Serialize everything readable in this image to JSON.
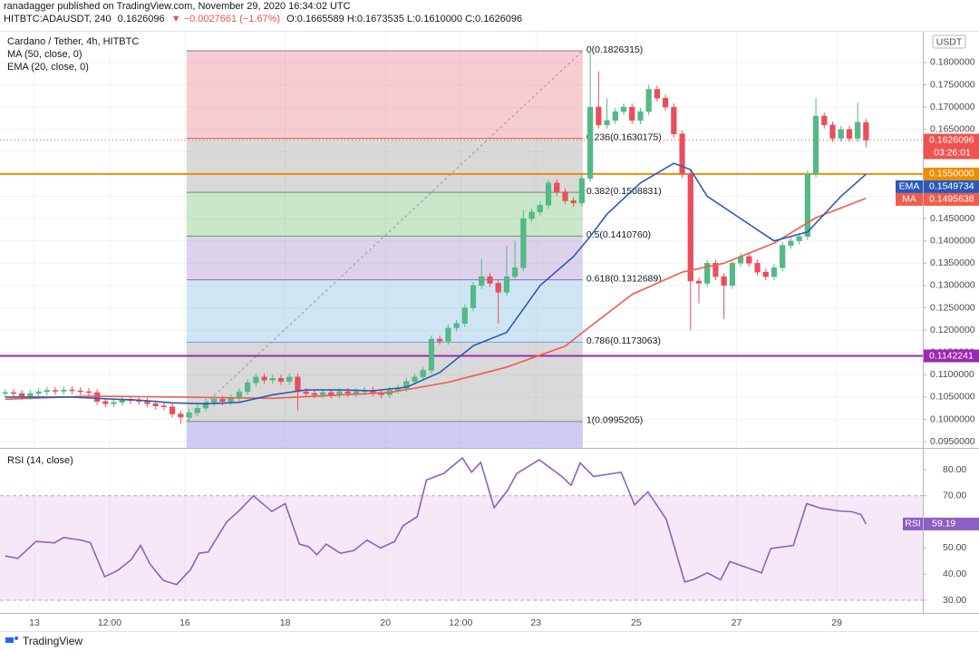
{
  "header": {
    "published": "ranadagger published on TradingView.com, November 29, 2020 16:34:02 UTC",
    "symbol": "HITBTC:ADAUSDT, 240",
    "last": "0.1626096",
    "change": "▼ −0.0027661 (−1.67%)",
    "ohlc": "O:0.1665589 H:0.1673535 L:0.1610000 C:0.1626096"
  },
  "footer": {
    "brand": "TradingView"
  },
  "chart_data": [
    {
      "type": "candlestick",
      "currency": "USDT",
      "countdown": "03:26:01",
      "xlim": [
        -4.12,
        106.29
      ],
      "ylim": [
        0.094,
        0.1869
      ],
      "grid": true,
      "yticks": [
        {
          "value": 0.18,
          "label": "0.1800000"
        },
        {
          "value": 0.175,
          "label": "0.1750000"
        },
        {
          "value": 0.17,
          "label": "0.1700000"
        },
        {
          "value": 0.165,
          "label": "0.1650000"
        },
        {
          "value": 0.16,
          "label": "0.1600000"
        },
        {
          "value": 0.155,
          "label": "0.1550000"
        },
        {
          "value": 0.15,
          "label": "0.1500000"
        },
        {
          "value": 0.145,
          "label": "0.1450000"
        },
        {
          "value": 0.14,
          "label": "0.1400000"
        },
        {
          "value": 0.135,
          "label": "0.1350000"
        },
        {
          "value": 0.13,
          "label": "0.1300000"
        },
        {
          "value": 0.125,
          "label": "0.1250000"
        },
        {
          "value": 0.12,
          "label": "0.1200000"
        },
        {
          "value": 0.115,
          "label": "0.1150000"
        },
        {
          "value": 0.11,
          "label": "0.1100000"
        },
        {
          "value": 0.105,
          "label": "0.1050000"
        },
        {
          "value": 0.1,
          "label": "0.1000000"
        },
        {
          "value": 0.095,
          "label": "0.0950000"
        }
      ],
      "series": [
        {
          "name": "Cardano / Tether, 4h, HITBTC",
          "up_color": "#53b987",
          "down_color": "#eb4d5c",
          "x": [
            -3.5,
            -2.5,
            -1.5,
            -0.5,
            0.5,
            1.5,
            2.5,
            3.5,
            4.5,
            5.5,
            6.5,
            7.5,
            8.5,
            9.5,
            10.5,
            11.5,
            12.5,
            13.5,
            14.5,
            15.5,
            16.5,
            17.5,
            18.5,
            19.5,
            20.5,
            21.5,
            22.5,
            23.5,
            24.5,
            25.5,
            26.5,
            27.5,
            28.5,
            29.5,
            30.5,
            31.5,
            32.5,
            33.5,
            34.5,
            35.5,
            36.5,
            37.5,
            38.5,
            39.5,
            40.5,
            41.5,
            42.5,
            43.5,
            44.5,
            45.5,
            46.5,
            47.5,
            48.5,
            49.5,
            50.5,
            51.5,
            52.5,
            53.5,
            54.5,
            55.5,
            56.5,
            57.5,
            58.5,
            59.5,
            60.5,
            61.5,
            62.5,
            63.5,
            64.5,
            65.5,
            66.5,
            67.5,
            68.5,
            69.5,
            70.5,
            71.5,
            72.5,
            73.5,
            74.5,
            75.5,
            76.5,
            77.5,
            78.5,
            79.5,
            80.5,
            81.5,
            82.5,
            83.5,
            84.5,
            85.5,
            86.5,
            87.5,
            88.5,
            89.5,
            90.5,
            91.5,
            92.5,
            93.5,
            94.5,
            95.5,
            96.5,
            97.5,
            98.5,
            99.5
          ],
          "open": [
            0.1058,
            0.106,
            0.1058,
            0.1052,
            0.1058,
            0.1062,
            0.1065,
            0.1063,
            0.1066,
            0.1064,
            0.1062,
            0.106,
            0.104,
            0.1035,
            0.1038,
            0.1045,
            0.1042,
            0.104,
            0.1035,
            0.103,
            0.1028,
            0.1012,
            0.1005,
            0.1015,
            0.1025,
            0.1038,
            0.1045,
            0.104,
            0.1048,
            0.1062,
            0.1082,
            0.1095,
            0.1088,
            0.1092,
            0.1085,
            0.1095,
            0.1062,
            0.1058,
            0.1055,
            0.106,
            0.1055,
            0.1062,
            0.1058,
            0.1062,
            0.1065,
            0.106,
            0.1055,
            0.1065,
            0.107,
            0.1085,
            0.1095,
            0.111,
            0.118,
            0.1175,
            0.1205,
            0.1215,
            0.125,
            0.13,
            0.132,
            0.1305,
            0.1285,
            0.132,
            0.134,
            0.145,
            0.1465,
            0.148,
            0.153,
            0.151,
            0.149,
            0.1485,
            0.154,
            0.17,
            0.166,
            0.167,
            0.169,
            0.17,
            0.167,
            0.169,
            0.174,
            0.172,
            0.17,
            0.164,
            0.155,
            0.131,
            0.1305,
            0.135,
            0.132,
            0.13,
            0.135,
            0.1365,
            0.135,
            0.133,
            0.132,
            0.134,
            0.139,
            0.14,
            0.141,
            0.155,
            0.168,
            0.166,
            0.163,
            0.165,
            0.163,
            0.1665589
          ],
          "high": [
            0.1068,
            0.1068,
            0.1066,
            0.1066,
            0.107,
            0.1073,
            0.1073,
            0.1074,
            0.1074,
            0.1072,
            0.107,
            0.1068,
            0.1048,
            0.1046,
            0.1053,
            0.1053,
            0.105,
            0.1048,
            0.1043,
            0.1038,
            0.1036,
            0.102,
            0.1023,
            0.1033,
            0.1046,
            0.1053,
            0.1053,
            0.1056,
            0.107,
            0.109,
            0.1103,
            0.1103,
            0.11,
            0.11,
            0.1103,
            0.1103,
            0.107,
            0.1066,
            0.1068,
            0.1068,
            0.107,
            0.107,
            0.107,
            0.1073,
            0.1073,
            0.1068,
            0.1073,
            0.1078,
            0.1093,
            0.1103,
            0.1118,
            0.1188,
            0.1188,
            0.1213,
            0.1223,
            0.1258,
            0.1308,
            0.136,
            0.1328,
            0.1313,
            0.139,
            0.14,
            0.147,
            0.1473,
            0.1488,
            0.1538,
            0.1538,
            0.1518,
            0.1498,
            0.1548,
            0.1826,
            0.178,
            0.172,
            0.1698,
            0.1708,
            0.1708,
            0.1698,
            0.175,
            0.1748,
            0.1728,
            0.1708,
            0.1648,
            0.1558,
            0.1318,
            0.1358,
            0.1358,
            0.1328,
            0.1358,
            0.1373,
            0.1373,
            0.1358,
            0.1338,
            0.1348,
            0.1398,
            0.1408,
            0.1418,
            0.1558,
            0.172,
            0.1688,
            0.1668,
            0.1658,
            0.1658,
            0.171,
            0.1673535
          ],
          "low": [
            0.105,
            0.105,
            0.1044,
            0.1044,
            0.105,
            0.1054,
            0.1055,
            0.1055,
            0.1056,
            0.1054,
            0.1052,
            0.1032,
            0.1027,
            0.1027,
            0.103,
            0.1034,
            0.1032,
            0.1027,
            0.1022,
            0.102,
            0.1004,
            0.099,
            0.0997,
            0.1007,
            0.1017,
            0.103,
            0.1032,
            0.1032,
            0.104,
            0.1054,
            0.1074,
            0.108,
            0.108,
            0.1077,
            0.1077,
            0.102,
            0.105,
            0.1047,
            0.1047,
            0.1047,
            0.1047,
            0.105,
            0.105,
            0.1054,
            0.1052,
            0.1047,
            0.1047,
            0.1057,
            0.1062,
            0.1077,
            0.1087,
            0.1102,
            0.1167,
            0.1167,
            0.1197,
            0.1207,
            0.1242,
            0.1292,
            0.1297,
            0.1215,
            0.1277,
            0.1312,
            0.1332,
            0.1442,
            0.1457,
            0.1472,
            0.1502,
            0.1482,
            0.1477,
            0.1477,
            0.1532,
            0.1652,
            0.1652,
            0.1662,
            0.1682,
            0.1662,
            0.1662,
            0.1682,
            0.1712,
            0.1692,
            0.1632,
            0.1542,
            0.12,
            0.126,
            0.1297,
            0.1312,
            0.1225,
            0.1292,
            0.1342,
            0.1342,
            0.1322,
            0.1312,
            0.1312,
            0.1332,
            0.1382,
            0.1392,
            0.1402,
            0.1542,
            0.1652,
            0.1622,
            0.1622,
            0.1622,
            0.1622,
            0.161
          ],
          "close": [
            0.106,
            0.1058,
            0.1052,
            0.1058,
            0.1062,
            0.1065,
            0.1063,
            0.1066,
            0.1064,
            0.1062,
            0.106,
            0.104,
            0.1035,
            0.1038,
            0.1045,
            0.1042,
            0.104,
            0.1035,
            0.103,
            0.1028,
            0.1012,
            0.1005,
            0.1015,
            0.1025,
            0.1038,
            0.1045,
            0.104,
            0.1048,
            0.1062,
            0.1082,
            0.1095,
            0.1088,
            0.1092,
            0.1085,
            0.1095,
            0.1062,
            0.1058,
            0.1055,
            0.106,
            0.1055,
            0.1062,
            0.1058,
            0.1062,
            0.1065,
            0.106,
            0.1055,
            0.1065,
            0.107,
            0.1085,
            0.1095,
            0.111,
            0.118,
            0.1175,
            0.1205,
            0.1215,
            0.125,
            0.13,
            0.132,
            0.1305,
            0.1285,
            0.132,
            0.134,
            0.145,
            0.1465,
            0.148,
            0.153,
            0.151,
            0.149,
            0.1485,
            0.154,
            0.17,
            0.166,
            0.167,
            0.169,
            0.17,
            0.167,
            0.169,
            0.174,
            0.172,
            0.17,
            0.164,
            0.155,
            0.131,
            0.1305,
            0.135,
            0.132,
            0.13,
            0.135,
            0.1365,
            0.135,
            0.133,
            0.132,
            0.134,
            0.139,
            0.14,
            0.141,
            0.155,
            0.168,
            0.166,
            0.163,
            0.165,
            0.163,
            0.1666,
            0.1626096
          ]
        },
        {
          "name": "MA (50, close, 0)",
          "tag": "MA",
          "color": "#f05d4a",
          "x": [
            -3.5,
            6.5,
            17.5,
            28.5,
            42.5,
            49.5,
            56.5,
            63.5,
            66.5,
            71.5,
            77.5,
            82.5,
            88.5,
            93.5,
            99.5
          ],
          "values": [
            0.1045,
            0.1052,
            0.105,
            0.1047,
            0.106,
            0.1083,
            0.1117,
            0.1164,
            0.1208,
            0.128,
            0.133,
            0.135,
            0.1395,
            0.1452,
            0.1495638
          ]
        },
        {
          "name": "EMA (20, close, 0)",
          "tag": "EMA",
          "color": "#2a5ab8",
          "x": [
            -3.5,
            0.5,
            4.5,
            8.5,
            12.5,
            16.5,
            20.5,
            24.5,
            28.5,
            32.5,
            36.5,
            40.5,
            44.5,
            48.5,
            52.5,
            56.5,
            60.5,
            64.5,
            66.5,
            68.5,
            72.5,
            76.5,
            78.5,
            80.5,
            84.5,
            88.5,
            92.5,
            96.5,
            99.5
          ],
          "values": [
            0.105,
            0.105,
            0.105,
            0.1046,
            0.1043,
            0.1037,
            0.1035,
            0.1038,
            0.1055,
            0.1066,
            0.1066,
            0.1064,
            0.1072,
            0.1105,
            0.1165,
            0.1195,
            0.13,
            0.1365,
            0.141,
            0.146,
            0.153,
            0.1574,
            0.156,
            0.15,
            0.145,
            0.14,
            0.142,
            0.15,
            0.1549734
          ]
        }
      ],
      "hlines": [
        {
          "value": 0.155,
          "label": "0.1550000",
          "color": "#f08c00"
        },
        {
          "value": 0.1142241,
          "color": "#9c27b0"
        }
      ],
      "fib": {
        "x": [
          18.2,
          65.6
        ],
        "levels": [
          {
            "value": 0.1826315,
            "label": "0(0.1826315)",
            "color": "#808080"
          },
          {
            "value": 0.1630175,
            "label": "0.236(0.1630175)",
            "color": "#e85a66"
          },
          {
            "value": 0.1508831,
            "label": "0.382(0.1508831)",
            "color": "#808080"
          },
          {
            "value": 0.141076,
            "label": "0.5(0.1410760)",
            "color": "#4caf50"
          },
          {
            "value": 0.1312689,
            "label": "0.618(0.1312689)",
            "color": "#8e6bbf"
          },
          {
            "value": 0.1173063,
            "label": "0.786(0.1173063)",
            "color": "#64a8dc"
          },
          {
            "value": 0.0995205,
            "label": "1(0.0995205)",
            "color": "#808080"
          }
        ]
      }
    },
    {
      "type": "line",
      "title": "RSI (14, close)",
      "xlim": [
        -4.12,
        106.29
      ],
      "ylim": [
        25.49,
        87.29
      ],
      "xticks": [
        {
          "value": 0,
          "label": "13"
        },
        {
          "value": 9,
          "label": "12:00"
        },
        {
          "value": 18,
          "label": "16"
        },
        {
          "value": 30,
          "label": "18"
        },
        {
          "value": 42,
          "label": "20"
        },
        {
          "value": 51,
          "label": "12:00"
        },
        {
          "value": 60,
          "label": "23"
        },
        {
          "value": 72,
          "label": "25"
        },
        {
          "value": 84,
          "label": "27"
        },
        {
          "value": 96,
          "label": "29"
        }
      ],
      "yticks": [
        {
          "value": 80,
          "label": "80.00"
        },
        {
          "value": 70,
          "label": "70.00"
        },
        {
          "value": 60,
          "label": "60.00"
        },
        {
          "value": 50,
          "label": "50.00"
        },
        {
          "value": 40,
          "label": "40.00"
        },
        {
          "value": 30,
          "label": "30.00"
        }
      ],
      "band": [
        30,
        70
      ],
      "series": [
        {
          "name": "RSI",
          "color": "#8e5fc4",
          "x": [
            -3.5,
            -2,
            0.2,
            2.4,
            3.5,
            5.6,
            6.7,
            8.4,
            10,
            11.6,
            12.7,
            13.8,
            15.4,
            17,
            18.7,
            19.7,
            20.8,
            23,
            24.6,
            26.2,
            28.4,
            30,
            31.7,
            32.8,
            33.8,
            34.9,
            36.6,
            38.2,
            39.8,
            41.4,
            43.1,
            44.1,
            45.8,
            46.9,
            49,
            51.2,
            52.3,
            53.4,
            55,
            56.6,
            57.7,
            60.4,
            63.1,
            64.2,
            65.3,
            66.9,
            70.2,
            71.8,
            73.4,
            75.6,
            77.8,
            78.9,
            80.5,
            82.1,
            83.2,
            87,
            88.1,
            90.8,
            92.4,
            94,
            96.2,
            97.8,
            98.9,
            99.5
          ],
          "values": [
            47,
            46,
            52.5,
            52,
            54,
            53,
            52,
            39,
            41.5,
            45.6,
            51,
            44,
            37.6,
            36,
            41.8,
            48,
            48.5,
            60,
            64.6,
            70,
            64,
            67,
            51.5,
            50.5,
            47.4,
            51.5,
            48,
            49,
            53,
            50,
            52.5,
            58.5,
            62,
            76,
            78.6,
            84.5,
            79,
            82.8,
            65.4,
            72,
            78.5,
            83.8,
            77.4,
            74,
            82.6,
            77.4,
            79,
            66.5,
            71.5,
            61,
            37,
            38,
            40.5,
            37.8,
            44.8,
            40.5,
            49.8,
            51,
            67,
            65.3,
            64.2,
            63.9,
            62.8,
            59.19
          ]
        }
      ]
    }
  ]
}
